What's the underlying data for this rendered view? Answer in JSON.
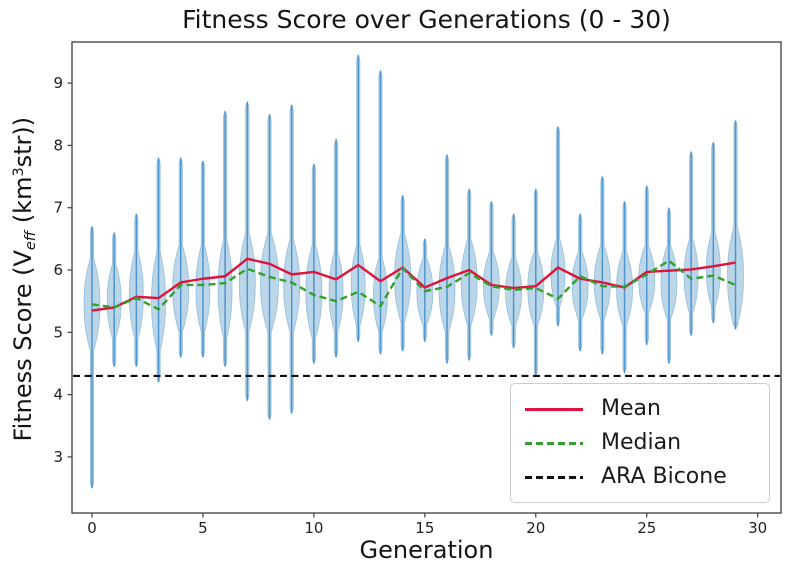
{
  "figure": {
    "title": "Fitness Score over Generations (0 - 30)"
  },
  "axes": {
    "xlabel": "Generation",
    "ylabel_parts": {
      "prefix": "Fitness Score (V",
      "sub": "eff",
      "mid": " (km",
      "sup": "3",
      "suffix": "str))"
    },
    "xtick_labels": [
      "0",
      "5",
      "10",
      "15",
      "20",
      "25",
      "30"
    ],
    "ytick_labels": [
      "3",
      "4",
      "5",
      "6",
      "7",
      "8",
      "9"
    ]
  },
  "legend": {
    "items": [
      {
        "label": "Mean",
        "color": "#dc143c",
        "dash": "solid"
      },
      {
        "label": "Median",
        "color": "#33a02c",
        "dash": "dashed"
      },
      {
        "label": "ARA Bicone",
        "color": "#111111",
        "dash": "dashed"
      }
    ]
  },
  "colors": {
    "violin_fill": "rgba(31,119,180,0.30)",
    "violin_edge": "rgba(31,119,180,0.35)",
    "violin_line": "#4f94cd",
    "mean": "#dc143c",
    "median": "#33a02c",
    "ara": "#111111",
    "axis": "#3c3c3c",
    "tick_text": "#222222"
  },
  "chart_data": {
    "type": "violin",
    "title": "Fitness Score over Generations (0 - 30)",
    "xlabel": "Generation",
    "ylabel": "Fitness Score (V_eff (km^3 str))",
    "xlim": [
      -0.9,
      31.05
    ],
    "ylim": [
      2.1,
      9.66
    ],
    "xticks": [
      0,
      5,
      10,
      15,
      20,
      25,
      30
    ],
    "yticks": [
      3,
      4,
      5,
      6,
      7,
      8,
      9
    ],
    "grid": false,
    "legend_position": "lower right",
    "ara_bicone_value": 4.3,
    "violins": [
      {
        "gen": 0,
        "min": 2.5,
        "max": 6.7,
        "body": [
          4.7,
          6.2
        ],
        "hw": 8
      },
      {
        "gen": 1,
        "min": 4.45,
        "max": 6.6,
        "body": [
          4.9,
          6.1
        ],
        "hw": 7
      },
      {
        "gen": 2,
        "min": 4.45,
        "max": 6.9,
        "body": [
          4.9,
          6.3
        ],
        "hw": 7
      },
      {
        "gen": 3,
        "min": 4.2,
        "max": 7.8,
        "body": [
          4.7,
          6.3
        ],
        "hw": 7
      },
      {
        "gen": 4,
        "min": 4.6,
        "max": 7.8,
        "body": [
          5.0,
          6.4
        ],
        "hw": 8
      },
      {
        "gen": 5,
        "min": 4.6,
        "max": 7.75,
        "body": [
          5.0,
          6.4
        ],
        "hw": 7
      },
      {
        "gen": 6,
        "min": 4.45,
        "max": 8.55,
        "body": [
          4.9,
          6.5
        ],
        "hw": 7
      },
      {
        "gen": 7,
        "min": 3.9,
        "max": 8.7,
        "body": [
          5.0,
          6.6
        ],
        "hw": 8
      },
      {
        "gen": 8,
        "min": 3.6,
        "max": 8.5,
        "body": [
          5.0,
          6.6
        ],
        "hw": 9
      },
      {
        "gen": 9,
        "min": 3.7,
        "max": 8.65,
        "body": [
          5.0,
          6.5
        ],
        "hw": 8
      },
      {
        "gen": 10,
        "min": 4.5,
        "max": 7.7,
        "body": [
          4.9,
          6.4
        ],
        "hw": 8
      },
      {
        "gen": 11,
        "min": 4.6,
        "max": 8.1,
        "body": [
          5.0,
          6.3
        ],
        "hw": 7
      },
      {
        "gen": 12,
        "min": 4.85,
        "max": 9.45,
        "body": [
          5.1,
          6.4
        ],
        "hw": 7
      },
      {
        "gen": 13,
        "min": 4.65,
        "max": 9.2,
        "body": [
          5.0,
          6.2
        ],
        "hw": 7
      },
      {
        "gen": 14,
        "min": 4.7,
        "max": 7.2,
        "body": [
          5.15,
          6.6
        ],
        "hw": 8
      },
      {
        "gen": 15,
        "min": 4.85,
        "max": 6.5,
        "body": [
          5.1,
          6.2
        ],
        "hw": 8
      },
      {
        "gen": 16,
        "min": 4.5,
        "max": 7.85,
        "body": [
          5.0,
          6.4
        ],
        "hw": 8
      },
      {
        "gen": 17,
        "min": 4.55,
        "max": 7.3,
        "body": [
          5.1,
          6.5
        ],
        "hw": 8
      },
      {
        "gen": 18,
        "min": 4.95,
        "max": 7.1,
        "body": [
          5.2,
          6.3
        ],
        "hw": 8
      },
      {
        "gen": 19,
        "min": 4.75,
        "max": 6.9,
        "body": [
          5.1,
          6.2
        ],
        "hw": 8
      },
      {
        "gen": 20,
        "min": 4.3,
        "max": 7.3,
        "body": [
          5.1,
          6.3
        ],
        "hw": 8
      },
      {
        "gen": 21,
        "min": 5.1,
        "max": 8.3,
        "body": [
          5.4,
          6.5
        ],
        "hw": 7
      },
      {
        "gen": 22,
        "min": 4.7,
        "max": 6.9,
        "body": [
          5.2,
          6.3
        ],
        "hw": 8
      },
      {
        "gen": 23,
        "min": 4.65,
        "max": 7.5,
        "body": [
          5.2,
          6.4
        ],
        "hw": 8
      },
      {
        "gen": 24,
        "min": 4.35,
        "max": 7.1,
        "body": [
          5.1,
          6.3
        ],
        "hw": 8
      },
      {
        "gen": 25,
        "min": 4.8,
        "max": 7.35,
        "body": [
          5.3,
          6.4
        ],
        "hw": 8
      },
      {
        "gen": 26,
        "min": 4.5,
        "max": 7.0,
        "body": [
          5.2,
          6.4
        ],
        "hw": 8
      },
      {
        "gen": 27,
        "min": 4.95,
        "max": 7.9,
        "body": [
          5.3,
          6.5
        ],
        "hw": 7
      },
      {
        "gen": 28,
        "min": 5.15,
        "max": 8.05,
        "body": [
          5.4,
          6.6
        ],
        "hw": 7
      },
      {
        "gen": 29,
        "min": 5.05,
        "max": 8.4,
        "body": [
          5.1,
          6.7
        ],
        "hw": 8
      }
    ],
    "series": [
      {
        "name": "Mean",
        "style": "solid",
        "color": "#dc143c",
        "values": [
          5.35,
          5.4,
          5.57,
          5.55,
          5.8,
          5.86,
          5.9,
          6.18,
          6.1,
          5.93,
          5.97,
          5.85,
          6.08,
          5.82,
          6.04,
          5.72,
          5.87,
          6.0,
          5.76,
          5.71,
          5.74,
          6.04,
          5.86,
          5.8,
          5.72,
          5.97,
          5.99,
          6.01,
          6.06,
          6.12
        ]
      },
      {
        "name": "Median",
        "style": "dashed",
        "color": "#33a02c",
        "values": [
          5.45,
          5.4,
          5.55,
          5.37,
          5.76,
          5.76,
          5.79,
          6.02,
          5.89,
          5.8,
          5.6,
          5.5,
          5.65,
          5.42,
          6.03,
          5.66,
          5.73,
          5.95,
          5.74,
          5.68,
          5.71,
          5.54,
          5.9,
          5.74,
          5.73,
          5.93,
          6.15,
          5.86,
          5.91,
          5.76
        ]
      }
    ]
  }
}
